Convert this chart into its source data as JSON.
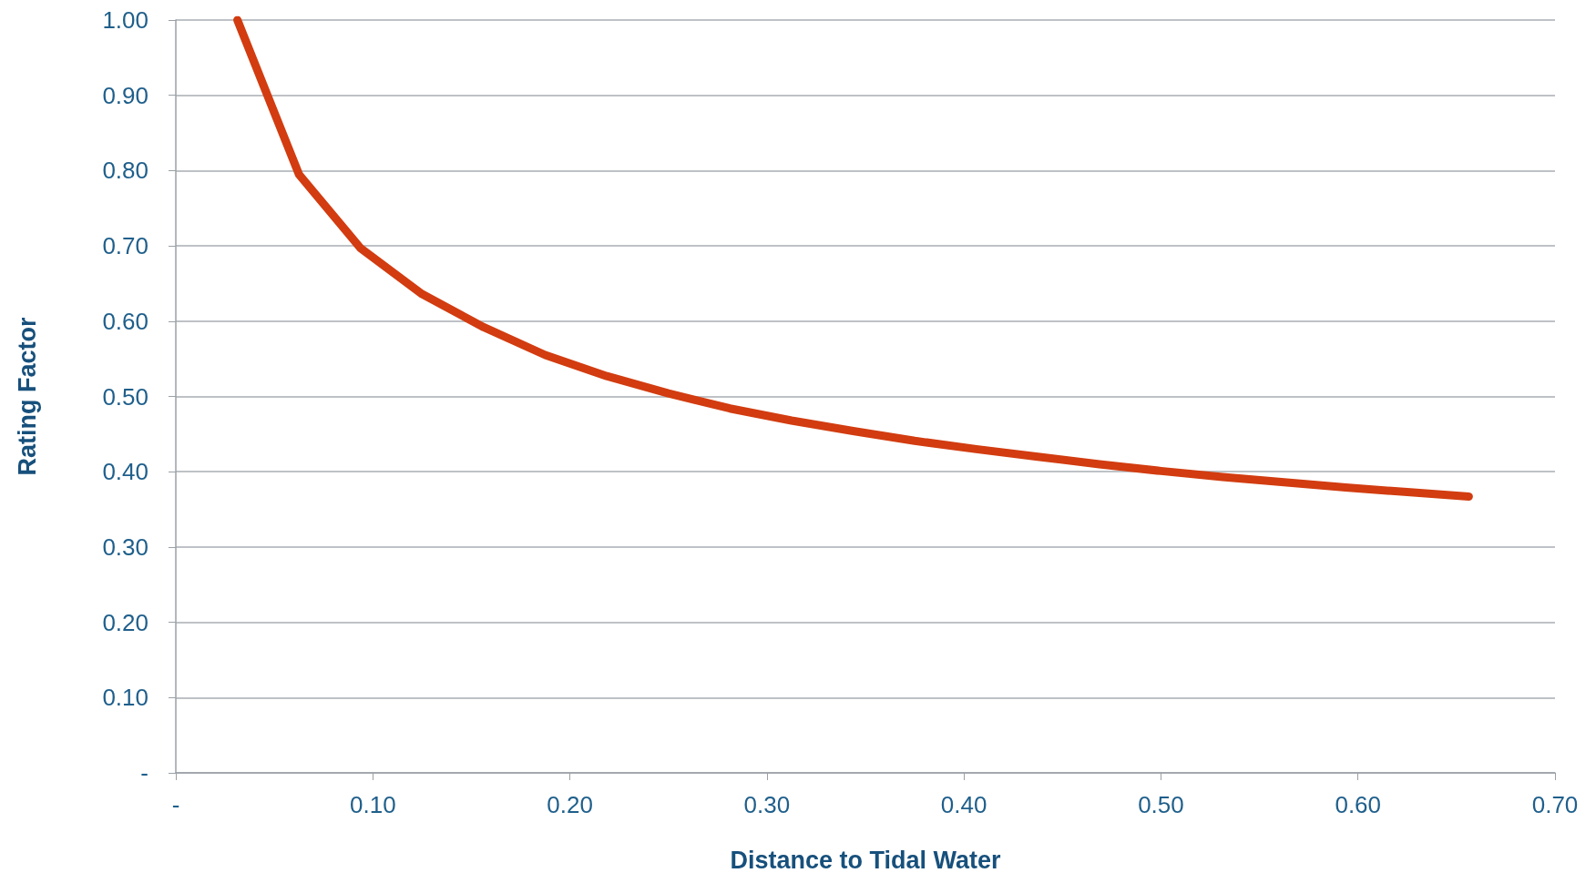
{
  "chart_data": {
    "type": "line",
    "xlabel": "Distance to Tidal Water",
    "ylabel": "Rating Factor",
    "x": [
      0.03125,
      0.0625,
      0.09375,
      0.125,
      0.15625,
      0.1875,
      0.21875,
      0.25,
      0.28125,
      0.3125,
      0.34375,
      0.375,
      0.40625,
      0.4375,
      0.46875,
      0.5,
      0.53125,
      0.5625,
      0.59375,
      0.625,
      0.65625
    ],
    "series": [
      {
        "color": "#d23c10",
        "values": [
          1.0,
          0.795,
          0.697,
          0.636,
          0.592,
          0.555,
          0.527,
          0.504,
          0.484,
          0.468,
          0.454,
          0.441,
          0.43,
          0.42,
          0.41,
          0.401,
          0.393,
          0.386,
          0.379,
          0.373,
          0.367
        ]
      }
    ],
    "xlim": [
      0,
      0.7
    ],
    "ylim": [
      0,
      1
    ],
    "xticks": [
      {
        "value": 0,
        "label": "-"
      },
      {
        "value": 0.1,
        "label": "0.10"
      },
      {
        "value": 0.2,
        "label": "0.20"
      },
      {
        "value": 0.3,
        "label": "0.30"
      },
      {
        "value": 0.4,
        "label": "0.40"
      },
      {
        "value": 0.5,
        "label": "0.50"
      },
      {
        "value": 0.6,
        "label": "0.60"
      },
      {
        "value": 0.7,
        "label": "0.70"
      }
    ],
    "yticks": [
      {
        "value": 0,
        "label": "-"
      },
      {
        "value": 0.1,
        "label": "0.10"
      },
      {
        "value": 0.2,
        "label": "0.20"
      },
      {
        "value": 0.3,
        "label": "0.30"
      },
      {
        "value": 0.4,
        "label": "0.40"
      },
      {
        "value": 0.5,
        "label": "0.50"
      },
      {
        "value": 0.6,
        "label": "0.60"
      },
      {
        "value": 0.7,
        "label": "0.70"
      },
      {
        "value": 0.8,
        "label": "0.80"
      },
      {
        "value": 0.9,
        "label": "0.90"
      },
      {
        "value": 1,
        "label": "1.00"
      }
    ],
    "grid": "y",
    "line_style": "solid"
  }
}
